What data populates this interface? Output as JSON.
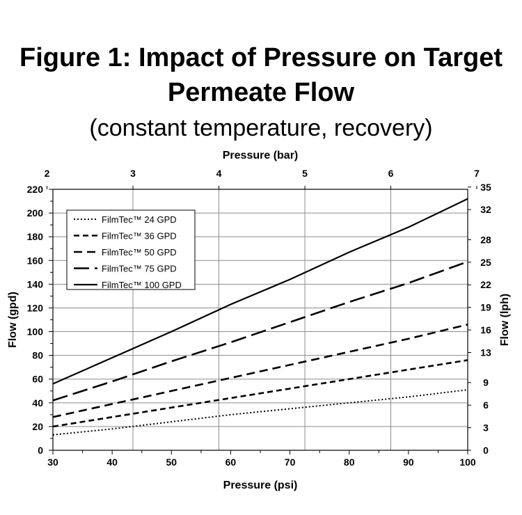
{
  "title_line1": "Figure 1: Impact of Pressure on Target",
  "title_line2": "Permeate Flow",
  "subtitle": "(constant temperature, recovery)",
  "chart_data": {
    "type": "line",
    "title": "Figure 1: Impact of Pressure on Target Permeate Flow",
    "subtitle": "(constant temperature, recovery)",
    "xlabel": "Pressure (psi)",
    "ylabel": "Flow (gpd)",
    "x2label": "Pressure (bar)",
    "y2label": "Flow (lph)",
    "xlim": [
      30,
      100
    ],
    "ylim": [
      0,
      220
    ],
    "x_ticks": [
      30,
      40,
      50,
      60,
      70,
      80,
      90,
      100
    ],
    "y_ticks": [
      0,
      20,
      40,
      60,
      80,
      100,
      120,
      140,
      160,
      180,
      200,
      220
    ],
    "x2_ticks": [
      2,
      3,
      4,
      5,
      6,
      7
    ],
    "y2_ticks": [
      0,
      3,
      6,
      9,
      13,
      16,
      19,
      22,
      25,
      28,
      32,
      35
    ],
    "grid": true,
    "legend_position": "top-left",
    "x": [
      30,
      40,
      50,
      60,
      70,
      80,
      90,
      100
    ],
    "series": [
      {
        "name": "FilmTec™ 24 GPD",
        "style": "dotted",
        "values": [
          13,
          18,
          24,
          30,
          35,
          40,
          45,
          51
        ]
      },
      {
        "name": "FilmTec™ 36 GPD",
        "style": "short-dash",
        "values": [
          20,
          28,
          36,
          44,
          52,
          60,
          68,
          76
        ]
      },
      {
        "name": "FilmTec™ 50 GPD",
        "style": "dash",
        "values": [
          28,
          39,
          50,
          61,
          72,
          83,
          94,
          106
        ]
      },
      {
        "name": "FilmTec™ 75 GPD",
        "style": "long-dash",
        "values": [
          42,
          58,
          75,
          91,
          108,
          125,
          141,
          159
        ]
      },
      {
        "name": "FilmTec™ 100 GPD",
        "style": "solid",
        "values": [
          56,
          78,
          100,
          123,
          144,
          167,
          188,
          212
        ]
      }
    ]
  }
}
